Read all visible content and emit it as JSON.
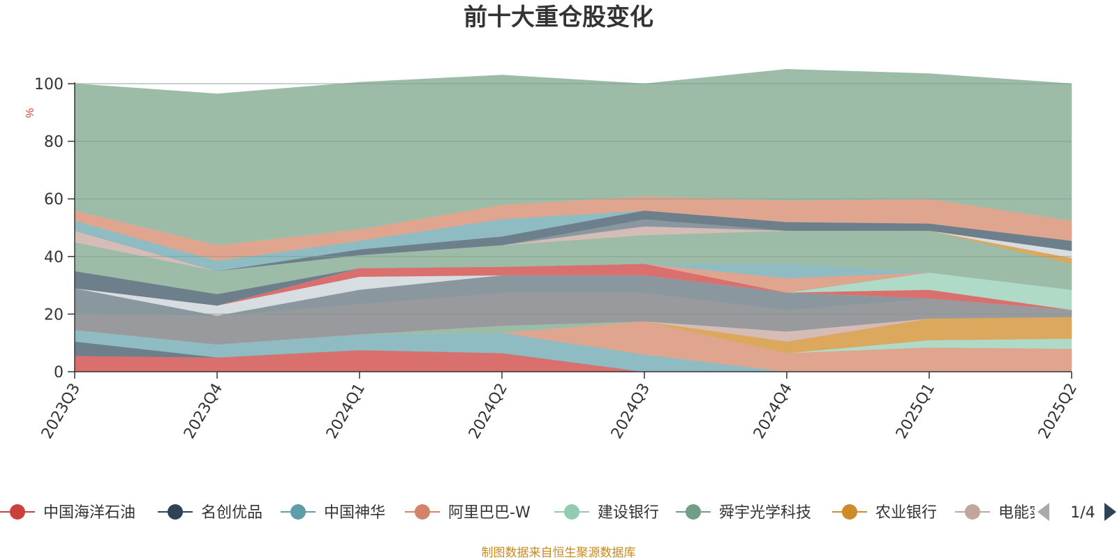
{
  "chart_data": {
    "type": "area",
    "title": "前十大重仓股变化",
    "ylabel": "%",
    "ylim": [
      0,
      100
    ],
    "yticks": [
      0,
      20,
      40,
      60,
      80,
      100
    ],
    "categories": [
      "2023Q3",
      "2023Q4",
      "2024Q1",
      "2024Q2",
      "2024Q3",
      "2024Q4",
      "2025Q1",
      "2025Q2"
    ],
    "series": [
      {
        "name": "中国海洋石油",
        "color": "#d9706e",
        "values": [
          5.5,
          5,
          7.5,
          6.5,
          0,
          0,
          0,
          0
        ]
      },
      {
        "name": "名创优品",
        "color": "#6e7f8c",
        "values": [
          5,
          0,
          0,
          0,
          0,
          0,
          0,
          0
        ]
      },
      {
        "name": "中国神华",
        "color": "#8fbcc3",
        "values": [
          4,
          4.5,
          5.5,
          7,
          6,
          0,
          0,
          0
        ]
      },
      {
        "name": "阿里巴巴-W",
        "color": "#e0a58e",
        "values": [
          0,
          0,
          0,
          0,
          11.5,
          6.5,
          8.5,
          8
        ]
      },
      {
        "name": "建设银行",
        "color": "#b0dac8",
        "values": [
          0,
          0,
          0,
          0,
          0,
          0,
          2.5,
          3.5
        ]
      },
      {
        "name": "舜宇光学科技",
        "color": "#9dbca8",
        "values": [
          0,
          0,
          0,
          2.5,
          0,
          0,
          0,
          0
        ]
      },
      {
        "name": "农业银行",
        "color": "#dca85e",
        "values": [
          0,
          0,
          0,
          0,
          0,
          4,
          7.5,
          7.5
        ]
      },
      {
        "name": "电能实业",
        "color": "#d5bcb6",
        "values": [
          0,
          0,
          0,
          0,
          0,
          3.5,
          0,
          0
        ]
      },
      {
        "name": "",
        "color": "#989a9e",
        "values": [
          6,
          10,
          10.5,
          11.5,
          10,
          7.5,
          7,
          2.5
        ]
      },
      {
        "name": "",
        "color": "#8a979e",
        "values": [
          8.5,
          0,
          5,
          6,
          6,
          6,
          0,
          0
        ]
      },
      {
        "name": "",
        "color": "#d8dde2",
        "values": [
          0,
          3.5,
          4.5,
          0,
          0,
          0,
          0,
          0
        ]
      },
      {
        "name": "",
        "color": "#d9706e",
        "values": [
          0,
          0,
          3,
          3,
          4,
          0,
          3,
          0
        ]
      },
      {
        "name": "",
        "color": "#b0dac8",
        "values": [
          0,
          0,
          0,
          0,
          0,
          0,
          6,
          7
        ]
      },
      {
        "name": "",
        "color": "#6e7f8c",
        "values": [
          6,
          4,
          0,
          0,
          0,
          0,
          0,
          0
        ]
      },
      {
        "name": "",
        "color": "#e0a58e",
        "values": [
          0,
          0,
          0,
          0,
          0,
          5,
          0,
          0
        ]
      },
      {
        "name": "",
        "color": "#8fbcc3",
        "values": [
          0,
          0,
          0,
          0,
          0,
          5,
          0,
          0
        ]
      },
      {
        "name": "",
        "color": "#9dbca8",
        "values": [
          10,
          8,
          4.5,
          7.5,
          10,
          11.5,
          14.5,
          9
        ]
      },
      {
        "name": "",
        "color": "#dca85e",
        "values": [
          0,
          0,
          0,
          0,
          0,
          0,
          0,
          2
        ]
      },
      {
        "name": "",
        "color": "#d8dde2",
        "values": [
          0,
          0,
          0,
          0,
          0,
          0,
          0,
          2.5
        ]
      },
      {
        "name": "",
        "color": "#d5bcb6",
        "values": [
          4,
          0,
          0,
          0,
          3,
          0,
          0,
          0
        ]
      },
      {
        "name": "",
        "color": "#8a979e",
        "values": [
          0,
          0,
          0,
          0,
          2.5,
          0,
          0,
          0
        ]
      },
      {
        "name": "",
        "color": "#6e7f8c",
        "values": [
          0,
          0,
          2,
          3,
          3,
          3,
          2.5,
          3.5
        ]
      },
      {
        "name": "",
        "color": "#8fbcc3",
        "values": [
          3.5,
          3.5,
          3,
          6,
          0,
          0,
          0,
          0
        ]
      },
      {
        "name": "",
        "color": "#e0a58e",
        "values": [
          3.5,
          5.5,
          4,
          5,
          5,
          7.5,
          8.5,
          7
        ]
      },
      {
        "name": "",
        "color": "#b0dac8",
        "values": [
          0,
          0,
          0,
          0,
          0,
          0,
          0,
          0
        ]
      },
      {
        "name": "",
        "color": "#9dbca8",
        "values": [
          44,
          52.5,
          51,
          45,
          39,
          45.5,
          43.5,
          47.5
        ]
      }
    ],
    "legend": {
      "position": "bottom",
      "items": [
        {
          "label": "中国海洋石油",
          "color": "#c9413a"
        },
        {
          "label": "名创优品",
          "color": "#2f4356"
        },
        {
          "label": "中国神华",
          "color": "#5f9ea8"
        },
        {
          "label": "阿里巴巴-W",
          "color": "#d4836a"
        },
        {
          "label": "建设银行",
          "color": "#93cbb2"
        },
        {
          "label": "舜宇光学科技",
          "color": "#719f83"
        },
        {
          "label": "农业银行",
          "color": "#cf8a2a"
        },
        {
          "label": "电能实业",
          "color": "#c2a59c"
        }
      ],
      "page": "1/4"
    },
    "grid": true
  },
  "source_text": "制图数据来自恒生聚源数据库"
}
